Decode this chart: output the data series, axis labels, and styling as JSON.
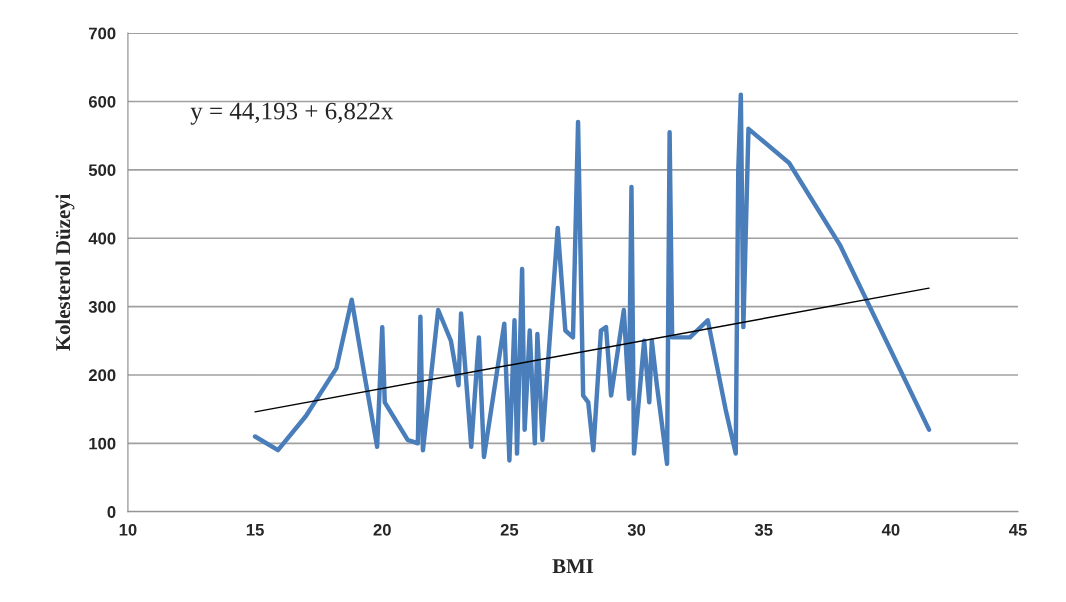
{
  "chart_data": {
    "type": "line",
    "xlabel": "BMI",
    "ylabel": "Kolesterol Düzeyi",
    "annotations": [
      "y = 44,193 + 6,822x"
    ],
    "series": [
      {
        "color": "#4a7ebb",
        "x": [
          15,
          15.9,
          17,
          18.2,
          18.8,
          19.3,
          19.8,
          20,
          20.1,
          21,
          21.4,
          21.5,
          21.6,
          22.2,
          22.7,
          23,
          23.1,
          23.5,
          23.8,
          24,
          24.8,
          25,
          25.2,
          25.3,
          25.5,
          25.6,
          25.8,
          26,
          26.1,
          26.3,
          26.9,
          27.2,
          27.5,
          27.7,
          27.9,
          28.1,
          28.3,
          28.6,
          28.8,
          29,
          29.5,
          29.7,
          29.8,
          29.9,
          30.3,
          30.5,
          30.6,
          30.8,
          31.2,
          31.3,
          31.4,
          32.1,
          32.8,
          33.5,
          33.9,
          34,
          34.1,
          34.2,
          34.4,
          36,
          38,
          41.5
        ],
        "values": [
          110,
          90,
          140,
          210,
          310,
          200,
          95,
          270,
          160,
          105,
          100,
          285,
          90,
          295,
          250,
          185,
          290,
          95,
          255,
          80,
          275,
          75,
          280,
          85,
          355,
          120,
          265,
          100,
          260,
          105,
          415,
          265,
          255,
          570,
          170,
          160,
          90,
          265,
          270,
          170,
          295,
          165,
          475,
          85,
          250,
          160,
          250,
          185,
          70,
          555,
          255,
          255,
          280,
          150,
          85,
          500,
          610,
          270,
          560,
          510,
          390,
          120
        ]
      },
      {
        "type": "line",
        "color": "#000000",
        "x": [
          15,
          41.5
        ],
        "values": [
          146,
          327
        ]
      }
    ],
    "xlim": [
      10,
      45
    ],
    "xticks": [
      10,
      15,
      20,
      25,
      30,
      35,
      40,
      45
    ],
    "ylim": [
      0,
      700
    ],
    "yticks": [
      0,
      100,
      200,
      300,
      400,
      500,
      600,
      700
    ],
    "grid": "y"
  }
}
